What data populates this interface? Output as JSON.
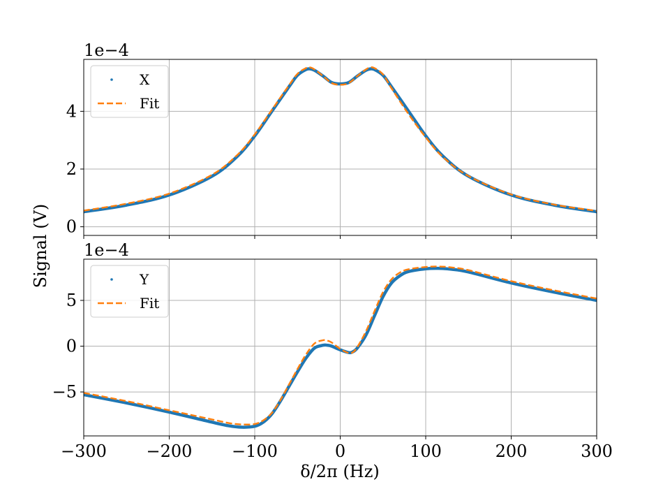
{
  "colors": {
    "data": "#1f77b4",
    "fit": "#ff7f0e",
    "grid": "#b0b0b0",
    "frame": "#000000"
  },
  "ylabel": "Signal (V)",
  "xlabel": "δ/2π (Hz)",
  "chart_data": [
    {
      "type": "line",
      "panel": "top",
      "offset_label": "1e−4",
      "xlim": [
        -300,
        300
      ],
      "ylim": [
        -0.3,
        5.8
      ],
      "xticks": [
        -300,
        -200,
        -100,
        0,
        100,
        200,
        300
      ],
      "yticks": [
        0,
        2,
        4
      ],
      "ytick_labels": [
        "0",
        "2",
        "4"
      ],
      "grid": true,
      "legend_position": "upper-left",
      "series": [
        {
          "name": "X",
          "style": "dots",
          "color": "#1f77b4",
          "x": [
            -300,
            -250,
            -200,
            -150,
            -120,
            -100,
            -80,
            -60,
            -50,
            -40,
            -35,
            -30,
            -20,
            -10,
            0,
            10,
            20,
            30,
            35,
            40,
            50,
            60,
            80,
            100,
            120,
            150,
            200,
            250,
            300
          ],
          "y": [
            0.52,
            0.75,
            1.1,
            1.75,
            2.45,
            3.15,
            4.0,
            4.85,
            5.25,
            5.45,
            5.47,
            5.42,
            5.22,
            5.0,
            4.95,
            5.0,
            5.22,
            5.42,
            5.47,
            5.45,
            5.25,
            4.85,
            4.0,
            3.15,
            2.45,
            1.75,
            1.1,
            0.75,
            0.52
          ]
        },
        {
          "name": "Fit",
          "style": "dashed",
          "color": "#ff7f0e",
          "x": [
            -300,
            -250,
            -200,
            -150,
            -120,
            -100,
            -80,
            -60,
            -50,
            -40,
            -35,
            -30,
            -20,
            -10,
            0,
            10,
            20,
            30,
            35,
            40,
            50,
            60,
            80,
            100,
            120,
            150,
            200,
            250,
            300
          ],
          "y": [
            0.56,
            0.8,
            1.15,
            1.8,
            2.5,
            3.2,
            4.05,
            4.9,
            5.3,
            5.5,
            5.52,
            5.45,
            5.22,
            4.98,
            4.92,
            4.98,
            5.22,
            5.45,
            5.52,
            5.5,
            5.28,
            4.8,
            3.9,
            3.1,
            2.42,
            1.76,
            1.12,
            0.77,
            0.55
          ]
        }
      ]
    },
    {
      "type": "line",
      "panel": "bottom",
      "offset_label": "1e−4",
      "xlim": [
        -300,
        300
      ],
      "ylim": [
        -9.8,
        9.5
      ],
      "xticks": [
        -300,
        -200,
        -100,
        0,
        100,
        200,
        300
      ],
      "xtick_labels": [
        "−300",
        "−200",
        "−100",
        "0",
        "100",
        "200",
        "300"
      ],
      "yticks": [
        -5,
        0,
        5
      ],
      "ytick_labels": [
        "−5",
        "0",
        "5"
      ],
      "grid": true,
      "legend_position": "upper-left",
      "series": [
        {
          "name": "Y",
          "style": "dots",
          "color": "#1f77b4",
          "x": [
            -300,
            -250,
            -200,
            -150,
            -130,
            -115,
            -100,
            -90,
            -80,
            -70,
            -60,
            -50,
            -40,
            -30,
            -20,
            -15,
            -10,
            0,
            10,
            15,
            20,
            30,
            40,
            50,
            60,
            70,
            80,
            100,
            115,
            130,
            150,
            200,
            250,
            300
          ],
          "y": [
            -5.3,
            -6.2,
            -7.2,
            -8.3,
            -8.7,
            -8.85,
            -8.75,
            -8.3,
            -7.4,
            -6.0,
            -4.4,
            -2.8,
            -1.3,
            -0.2,
            0.1,
            0.1,
            0.0,
            -0.4,
            -0.7,
            -0.6,
            -0.2,
            1.2,
            3.3,
            5.4,
            6.9,
            7.7,
            8.15,
            8.45,
            8.5,
            8.4,
            8.1,
            6.9,
            5.9,
            5.0
          ]
        },
        {
          "name": "Fit",
          "style": "dashed",
          "color": "#ff7f0e",
          "x": [
            -300,
            -250,
            -200,
            -150,
            -130,
            -115,
            -100,
            -90,
            -80,
            -70,
            -60,
            -50,
            -40,
            -30,
            -20,
            -15,
            -10,
            0,
            10,
            15,
            20,
            30,
            40,
            50,
            60,
            70,
            80,
            100,
            115,
            130,
            150,
            200,
            250,
            300
          ],
          "y": [
            -5.1,
            -6.0,
            -7.0,
            -8.0,
            -8.4,
            -8.55,
            -8.5,
            -8.1,
            -7.3,
            -5.9,
            -4.2,
            -2.5,
            -0.9,
            0.3,
            0.65,
            0.6,
            0.4,
            -0.3,
            -0.75,
            -0.65,
            -0.1,
            1.6,
            3.8,
            5.9,
            7.3,
            8.05,
            8.4,
            8.65,
            8.7,
            8.6,
            8.3,
            7.1,
            6.1,
            5.2
          ]
        }
      ]
    }
  ]
}
